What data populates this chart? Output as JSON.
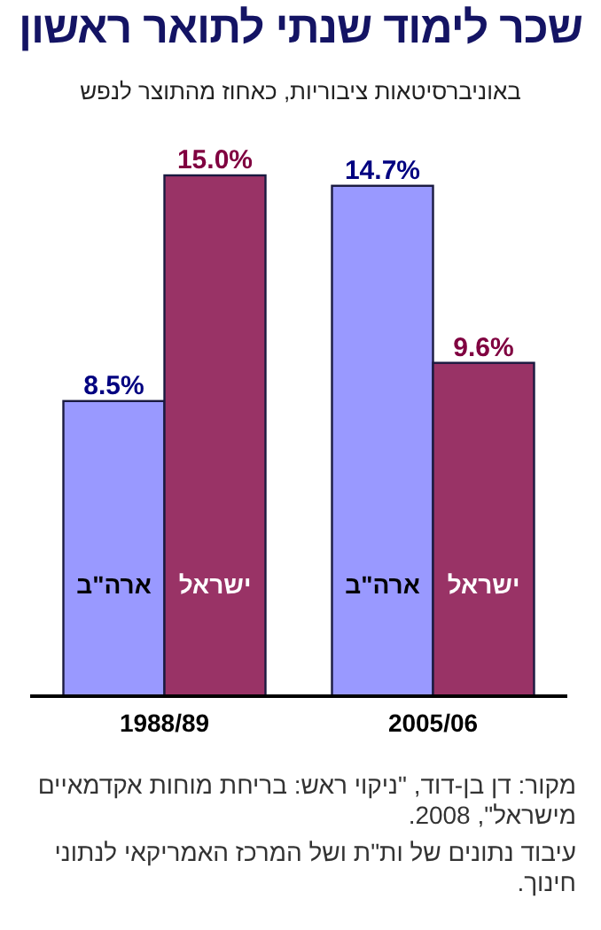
{
  "chart_data": {
    "type": "bar",
    "title": "שכר לימוד שנתי לתואר ראשון",
    "subtitle": "באוניברסיטאות ציבוריות, כאחוז מהתוצר לנפש",
    "categories": [
      "1988/89",
      "2005/06"
    ],
    "series": [
      {
        "name": "ארה\"ב",
        "color": "#9999ff",
        "values": [
          8.5,
          14.7
        ],
        "value_labels": [
          "8.5%",
          "14.7%"
        ]
      },
      {
        "name": "ישראל",
        "color": "#993366",
        "values": [
          15.0,
          9.6
        ],
        "value_labels": [
          "15.0%",
          "9.6%"
        ]
      }
    ],
    "legend": false,
    "annotations": [
      "מקור: דן בן-דוד, \"ניקוי ראש: בריחת מוחות אקדמאיים מישראל\", 2008.",
      "עיבוד נתונים של ות\"ת ושל המרכז האמריקאי לנתוני חינוך."
    ]
  }
}
